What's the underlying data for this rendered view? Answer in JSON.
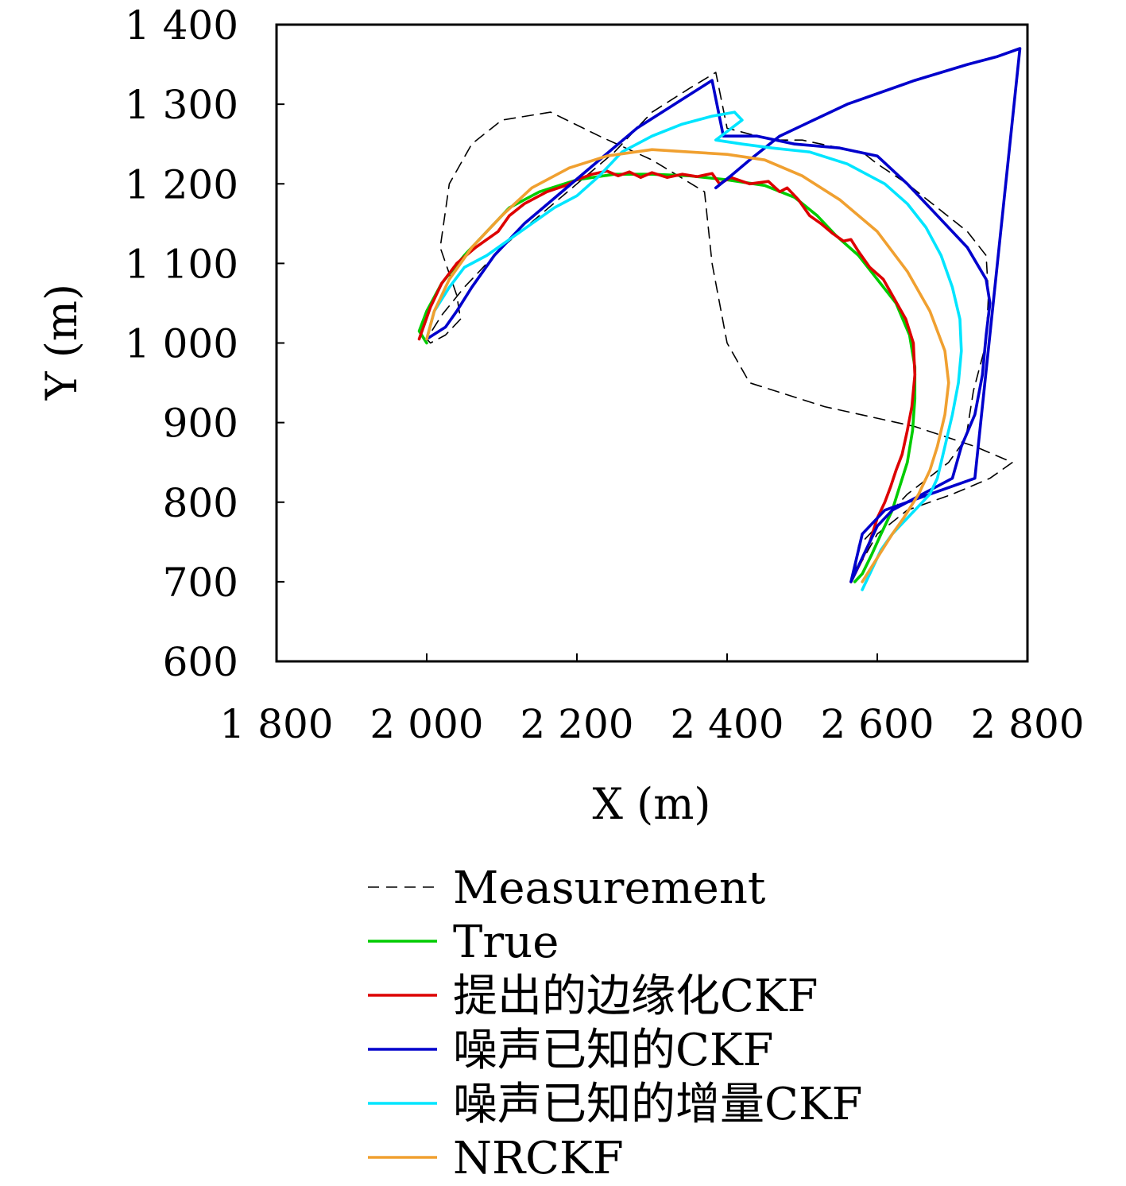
{
  "chart_data": {
    "type": "line",
    "xlabel": "X (m)",
    "ylabel": "Y (m)",
    "xlim": [
      1800,
      2800
    ],
    "ylim": [
      600,
      1400
    ],
    "xticks": [
      1800,
      2000,
      2200,
      2400,
      2600,
      2800
    ],
    "yticks": [
      600,
      700,
      800,
      900,
      1000,
      1100,
      1200,
      1300,
      1400
    ],
    "xtick_labels": [
      "1 800",
      "2 000",
      "2 200",
      "2 400",
      "2 600",
      "2 800"
    ],
    "ytick_labels": [
      "600",
      "700",
      "800",
      "900",
      "1 000",
      "1 100",
      "1 200",
      "1 300",
      "1 400"
    ],
    "legend_position": "bottom",
    "series": [
      {
        "name": "Measurement",
        "color": "#000000",
        "dash": true,
        "x": [
          2045,
          2025,
          2005,
          2000,
          2020,
          2050,
          2100,
          2150,
          2200,
          2250,
          2300,
          2350,
          2385,
          2400,
          2440,
          2470,
          2500,
          2550,
          2580,
          2600,
          2640,
          2680,
          2720,
          2745,
          2748,
          2745,
          2728,
          2718,
          2695,
          2640,
          2600,
          2575,
          2570,
          2600,
          2640,
          2700,
          2750,
          2780,
          2730,
          2650,
          2530,
          2430,
          2400,
          2380,
          2370,
          2300,
          2230,
          2165,
          2100,
          2060,
          2030,
          2018,
          2040,
          2045
        ],
        "y": [
          1030,
          1010,
          1000,
          1005,
          1035,
          1070,
          1120,
          1160,
          1200,
          1240,
          1290,
          1320,
          1340,
          1270,
          1260,
          1255,
          1255,
          1245,
          1240,
          1225,
          1200,
          1170,
          1140,
          1110,
          1060,
          1000,
          940,
          880,
          850,
          810,
          770,
          745,
          710,
          760,
          790,
          810,
          830,
          850,
          870,
          895,
          920,
          950,
          1000,
          1100,
          1190,
          1230,
          1260,
          1290,
          1280,
          1250,
          1200,
          1120,
          1060,
          1030
        ]
      },
      {
        "name": "True",
        "color": "#00cc00",
        "x": [
          2000,
          1990,
          2000,
          2020,
          2050,
          2080,
          2110,
          2150,
          2200,
          2250,
          2300,
          2350,
          2400,
          2450,
          2490,
          2520,
          2545,
          2575,
          2600,
          2625,
          2643,
          2650,
          2650,
          2647,
          2640,
          2630,
          2620,
          2605,
          2593,
          2580,
          2570
        ],
        "y": [
          1000,
          1015,
          1040,
          1075,
          1110,
          1140,
          1170,
          1190,
          1205,
          1212,
          1212,
          1210,
          1205,
          1198,
          1183,
          1160,
          1135,
          1110,
          1080,
          1050,
          1010,
          970,
          930,
          890,
          850,
          820,
          790,
          760,
          735,
          710,
          700
        ]
      },
      {
        "name": "提出的边缘化CKF",
        "color": "#dd0000",
        "x": [
          1990,
          2005,
          2020,
          2040,
          2065,
          2095,
          2110,
          2130,
          2160,
          2185,
          2200,
          2220,
          2240,
          2255,
          2270,
          2285,
          2300,
          2320,
          2340,
          2360,
          2380,
          2390,
          2405,
          2430,
          2455,
          2470,
          2480,
          2495,
          2510,
          2525,
          2540,
          2555,
          2565,
          2575,
          2590,
          2608,
          2620,
          2638,
          2648,
          2650,
          2646,
          2640,
          2633,
          2625,
          2618,
          2610,
          2600,
          2590,
          2578,
          2565
        ],
        "y": [
          1005,
          1045,
          1075,
          1100,
          1120,
          1140,
          1160,
          1175,
          1190,
          1198,
          1205,
          1212,
          1216,
          1210,
          1215,
          1208,
          1214,
          1208,
          1212,
          1209,
          1213,
          1200,
          1208,
          1200,
          1203,
          1190,
          1195,
          1180,
          1160,
          1150,
          1138,
          1128,
          1130,
          1115,
          1095,
          1080,
          1060,
          1030,
          1000,
          960,
          920,
          890,
          860,
          840,
          820,
          800,
          780,
          750,
          725,
          700
        ]
      },
      {
        "name": "噪声已知的CKF",
        "color": "#0000cc",
        "x": [
          2000,
          2025,
          2040,
          2060,
          2090,
          2130,
          2180,
          2230,
          2280,
          2330,
          2380,
          2395,
          2440,
          2490,
          2550,
          2600,
          2640,
          2680,
          2720,
          2745,
          2750,
          2745,
          2740,
          2730,
          2712,
          2700,
          2660,
          2620,
          2600,
          2590,
          2580,
          2570,
          2565,
          2580,
          2610,
          2670,
          2730,
          2790,
          2760,
          2720,
          2650,
          2560,
          2470,
          2430,
          2405,
          2385
        ],
        "y": [
          1005,
          1020,
          1040,
          1070,
          1110,
          1150,
          1190,
          1230,
          1270,
          1300,
          1330,
          1260,
          1260,
          1250,
          1245,
          1235,
          1200,
          1160,
          1120,
          1080,
          1050,
          1010,
          960,
          910,
          870,
          830,
          810,
          790,
          770,
          750,
          730,
          710,
          700,
          760,
          790,
          810,
          830,
          1370,
          1360,
          1350,
          1330,
          1300,
          1260,
          1230,
          1210,
          1195
        ]
      },
      {
        "name": "噪声已知的增量CKF",
        "color": "#00e5ff",
        "x": [
          2000,
          2010,
          2030,
          2050,
          2080,
          2110,
          2140,
          2170,
          2200,
          2230,
          2260,
          2300,
          2340,
          2380,
          2410,
          2420,
          2385,
          2420,
          2460,
          2510,
          2560,
          2610,
          2640,
          2665,
          2685,
          2700,
          2710,
          2712,
          2708,
          2700,
          2690,
          2680,
          2670,
          2660,
          2650,
          2640,
          2630,
          2620,
          2605,
          2590,
          2580
        ],
        "y": [
          1005,
          1040,
          1070,
          1095,
          1110,
          1130,
          1150,
          1170,
          1185,
          1210,
          1240,
          1260,
          1275,
          1285,
          1290,
          1280,
          1255,
          1250,
          1245,
          1240,
          1225,
          1200,
          1175,
          1145,
          1110,
          1070,
          1030,
          990,
          950,
          910,
          870,
          830,
          810,
          800,
          790,
          780,
          770,
          760,
          740,
          710,
          690
        ]
      },
      {
        "name": "NRCKF",
        "color": "#f0a030",
        "x": [
          2000,
          2010,
          2030,
          2060,
          2100,
          2140,
          2190,
          2240,
          2300,
          2350,
          2400,
          2450,
          2500,
          2550,
          2600,
          2640,
          2670,
          2690,
          2695,
          2690,
          2680,
          2670,
          2655,
          2635,
          2620,
          2600,
          2580
        ],
        "y": [
          1005,
          1040,
          1080,
          1120,
          1160,
          1195,
          1220,
          1235,
          1243,
          1240,
          1237,
          1230,
          1210,
          1180,
          1140,
          1090,
          1040,
          990,
          950,
          910,
          870,
          840,
          810,
          780,
          760,
          730,
          700
        ]
      }
    ]
  }
}
